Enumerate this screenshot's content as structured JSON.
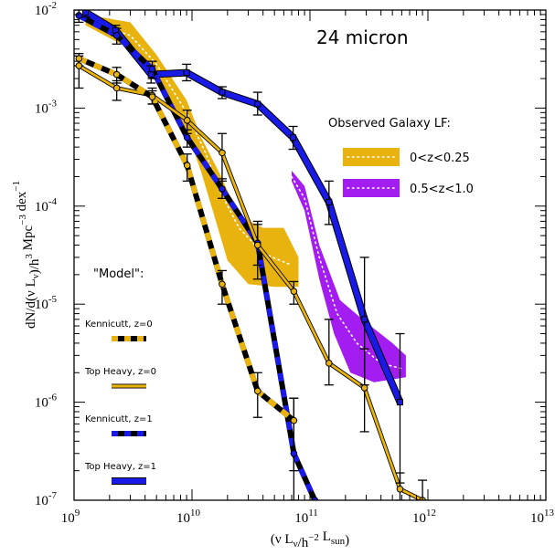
{
  "chart_data": {
    "type": "line",
    "title": "24 micron",
    "xlabel": "(ν L_ν/h^-2 L_sun)",
    "ylabel": "dN/d(ν L_ν)/h^3 Mpc^-3 dex^-1",
    "xscale": "log",
    "yscale": "log",
    "xlim": [
      1000000000.0,
      10000000000000.0
    ],
    "ylim": [
      1e-07,
      0.01
    ],
    "x_ticks": [
      {
        "exp": "9",
        "value": 1000000000.0
      },
      {
        "exp": "10",
        "value": 10000000000.0
      },
      {
        "exp": "11",
        "value": 100000000000.0
      },
      {
        "exp": "12",
        "value": 1000000000000.0
      },
      {
        "exp": "13",
        "value": 10000000000000.0
      }
    ],
    "y_ticks": [
      {
        "exp": "-7",
        "value": 1e-07
      },
      {
        "exp": "-6",
        "value": 1e-06
      },
      {
        "exp": "-5",
        "value": 1e-05
      },
      {
        "exp": "-4",
        "value": 0.0001
      },
      {
        "exp": "-3",
        "value": 0.001
      },
      {
        "exp": "-2",
        "value": 0.01
      }
    ],
    "observed_legend": {
      "heading": "Observed Galaxy LF:",
      "entries": [
        {
          "label": "0<z<0.25",
          "color": "#e8b30f"
        },
        {
          "label": "0.5<z<1.0",
          "color": "#a31cf0"
        }
      ]
    },
    "model_legend": {
      "heading": "\"Model\":",
      "entries": [
        {
          "label": "Kennicutt, z=0",
          "style": "kennicutt-z0"
        },
        {
          "label": "Top Heavy, z=0",
          "style": "topheavy-z0"
        },
        {
          "label": "Kennicutt, z=1",
          "style": "kennicutt-z1"
        },
        {
          "label": "Top Heavy, z=1",
          "style": "topheavy-z1"
        }
      ]
    },
    "colors": {
      "orange": "#e8b30f",
      "blue": "#1a1ae6",
      "purple": "#a31cf0",
      "black": "#000000"
    },
    "observed_bands": [
      {
        "name": "0<z<0.25",
        "color": "#e8b30f",
        "upper": [
          [
            1250000000.0,
            0.009
          ],
          [
            3000000000.0,
            0.0075
          ],
          [
            5000000000.0,
            0.0035
          ],
          [
            9000000000.0,
            0.0012
          ],
          [
            12000000000.0,
            0.0005
          ],
          [
            17000000000.0,
            0.00022
          ],
          [
            25000000000.0,
            8e-05
          ],
          [
            40000000000.0,
            6e-05
          ],
          [
            60000000000.0,
            6e-05
          ],
          [
            80000000000.0,
            3e-05
          ],
          [
            80000000000.0,
            1.5e-05
          ]
        ],
        "lower": [
          [
            1250000000.0,
            0.007
          ],
          [
            3000000000.0,
            0.004
          ],
          [
            5000000000.0,
            0.002
          ],
          [
            9000000000.0,
            0.0006
          ],
          [
            12000000000.0,
            0.00022
          ],
          [
            15000000000.0,
            9e-05
          ],
          [
            20000000000.0,
            2.8e-05
          ],
          [
            30000000000.0,
            1.6e-05
          ],
          [
            50000000000.0,
            1.5e-05
          ],
          [
            80000000000.0,
            1.5e-05
          ]
        ],
        "center": [
          [
            1250000000.0,
            0.008
          ],
          [
            3000000000.0,
            0.0055
          ],
          [
            5000000000.0,
            0.0028
          ],
          [
            9000000000.0,
            0.0009
          ],
          [
            13000000000.0,
            0.00035
          ],
          [
            18000000000.0,
            0.00013
          ],
          [
            25000000000.0,
            6e-05
          ],
          [
            40000000000.0,
            3.3e-05
          ],
          [
            70000000000.0,
            2.5e-05
          ]
        ]
      },
      {
        "name": "0.5<z<1.0",
        "color": "#a31cf0",
        "upper": [
          [
            70000000000.0,
            0.00023
          ],
          [
            90000000000.0,
            0.00016
          ],
          [
            120000000000.0,
            4e-05
          ],
          [
            180000000000.0,
            1.1e-05
          ],
          [
            300000000000.0,
            6.5e-06
          ],
          [
            500000000000.0,
            4e-06
          ],
          [
            650000000000.0,
            3e-06
          ],
          [
            650000000000.0,
            1.8e-06
          ]
        ],
        "lower": [
          [
            70000000000.0,
            0.00018
          ],
          [
            90000000000.0,
            9e-05
          ],
          [
            120000000000.0,
            1.8e-05
          ],
          [
            160000000000.0,
            5e-06
          ],
          [
            220000000000.0,
            2e-06
          ],
          [
            350000000000.0,
            1.6e-06
          ],
          [
            650000000000.0,
            1.8e-06
          ]
        ],
        "center": [
          [
            70000000000.0,
            0.0002
          ],
          [
            90000000000.0,
            0.00012
          ],
          [
            120000000000.0,
            3e-05
          ],
          [
            170000000000.0,
            8e-06
          ],
          [
            250000000000.0,
            4e-06
          ],
          [
            400000000000.0,
            2.5e-06
          ],
          [
            600000000000.0,
            2.2e-06
          ]
        ]
      }
    ],
    "series": [
      {
        "name": "Top Heavy, z=1",
        "style": "topheavy-z1",
        "x": [
          1250000000.0,
          2250000000.0,
          4500000000.0,
          9000000000.0,
          18000000000.0,
          36000000000.0,
          72000000000.0,
          145000000000.0,
          290000000000.0,
          580000000000.0
        ],
        "y": [
          0.0095,
          0.0062,
          0.0022,
          0.0023,
          0.00145,
          0.0011,
          0.0005,
          0.00011,
          7e-06,
          1e-06
        ],
        "err": [
          [
            0.0085,
            0.0105
          ],
          [
            0.0055,
            0.007
          ],
          [
            0.0018,
            0.0027
          ],
          [
            0.0019,
            0.0028
          ],
          [
            0.00125,
            0.00165
          ],
          [
            0.00085,
            0.00145
          ],
          [
            0.00038,
            0.00065
          ],
          [
            6.5e-05,
            0.00018
          ],
          [
            1.5e-06,
            3e-05
          ],
          [
            1.5e-07,
            5e-06
          ]
        ]
      },
      {
        "name": "Kennicutt, z=1",
        "style": "kennicutt-z1",
        "x": [
          1100000000.0,
          2300000000.0,
          4600000000.0,
          9100000000.0,
          18000000000.0,
          36000000000.0,
          73000000000.0,
          110000000000.0
        ],
        "y": [
          0.0088,
          0.0055,
          0.0025,
          0.0005,
          0.00015,
          4.2e-05,
          3e-07,
          1e-07
        ],
        "err": [
          [
            0.0075,
            0.01
          ],
          [
            0.0045,
            0.0065
          ],
          [
            0.002,
            0.003
          ],
          [
            0.0004,
            0.0006
          ],
          [
            0.00012,
            0.00019
          ],
          [
            2.5e-05,
            6.5e-05
          ],
          [
            1e-07,
            1.1e-06
          ],
          null
        ]
      },
      {
        "name": "Top Heavy, z=0",
        "style": "topheavy-z0",
        "x": [
          1100000000.0,
          2300000000.0,
          4600000000.0,
          9100000000.0,
          18000000000.0,
          36000000000.0,
          73000000000.0,
          145000000000.0,
          290000000000.0,
          580000000000.0,
          900000000000.0
        ],
        "y": [
          0.0027,
          0.0016,
          0.00135,
          0.00075,
          0.00035,
          4e-05,
          1.35e-05,
          2.5e-06,
          1.4e-06,
          1.3e-07,
          1e-07
        ],
        "err": [
          [
            0.0016,
            0.0034
          ],
          [
            0.0012,
            0.0019
          ],
          [
            0.0011,
            0.0016
          ],
          [
            0.00055,
            0.00095
          ],
          [
            0.00018,
            0.00055
          ],
          [
            1.8e-05,
            7e-05
          ],
          [
            1e-05,
            1.7e-05
          ],
          [
            1.5e-06,
            7e-06
          ],
          [
            5e-07,
            3.5e-06
          ],
          [
            1e-07,
            1.9e-07
          ],
          [
            1e-07,
            1.6e-07
          ]
        ]
      },
      {
        "name": "Kennicutt, z=0",
        "style": "kennicutt-z0",
        "x": [
          1100000000.0,
          2300000000.0,
          4600000000.0,
          9100000000.0,
          18000000000.0,
          36000000000.0,
          73000000000.0
        ],
        "y": [
          0.0032,
          0.0022,
          0.0013,
          0.00026,
          1.6e-05,
          1.3e-06,
          6.5e-07
        ],
        "err": [
          [
            0.0027,
            0.0036
          ],
          [
            0.0018,
            0.0026
          ],
          [
            0.0011,
            0.0015
          ],
          [
            0.00018,
            0.00034
          ],
          [
            1e-05,
            2.2e-05
          ],
          [
            7e-07,
            2e-06
          ],
          [
            2e-07,
            1.1e-06
          ]
        ]
      }
    ]
  }
}
